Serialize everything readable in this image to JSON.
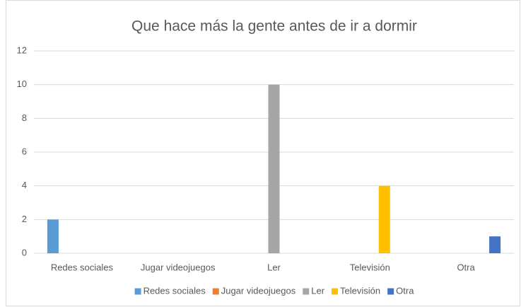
{
  "chart_data": {
    "type": "bar",
    "title": "Que hace más la gente antes de ir a dormir",
    "categories": [
      "Redes sociales",
      "Jugar videojuegos",
      "Ler",
      "Televisión",
      "Otra"
    ],
    "series": [
      {
        "name": "Redes sociales",
        "color": "#5b9bd5",
        "values": [
          2,
          0,
          0,
          0,
          0
        ]
      },
      {
        "name": "Jugar videojuegos",
        "color": "#ed7d31",
        "values": [
          0,
          0,
          0,
          0,
          0
        ]
      },
      {
        "name": "Ler",
        "color": "#a5a5a5",
        "values": [
          0,
          0,
          10,
          0,
          0
        ]
      },
      {
        "name": "Televisión",
        "color": "#ffc000",
        "values": [
          0,
          0,
          0,
          4,
          0
        ]
      },
      {
        "name": "Otra",
        "color": "#4472c4",
        "values": [
          0,
          0,
          0,
          0,
          1
        ]
      }
    ],
    "ylim": [
      0,
      12
    ],
    "yticks": [
      0,
      2,
      4,
      6,
      8,
      10,
      12
    ],
    "grid": true,
    "legend": "bottom"
  }
}
